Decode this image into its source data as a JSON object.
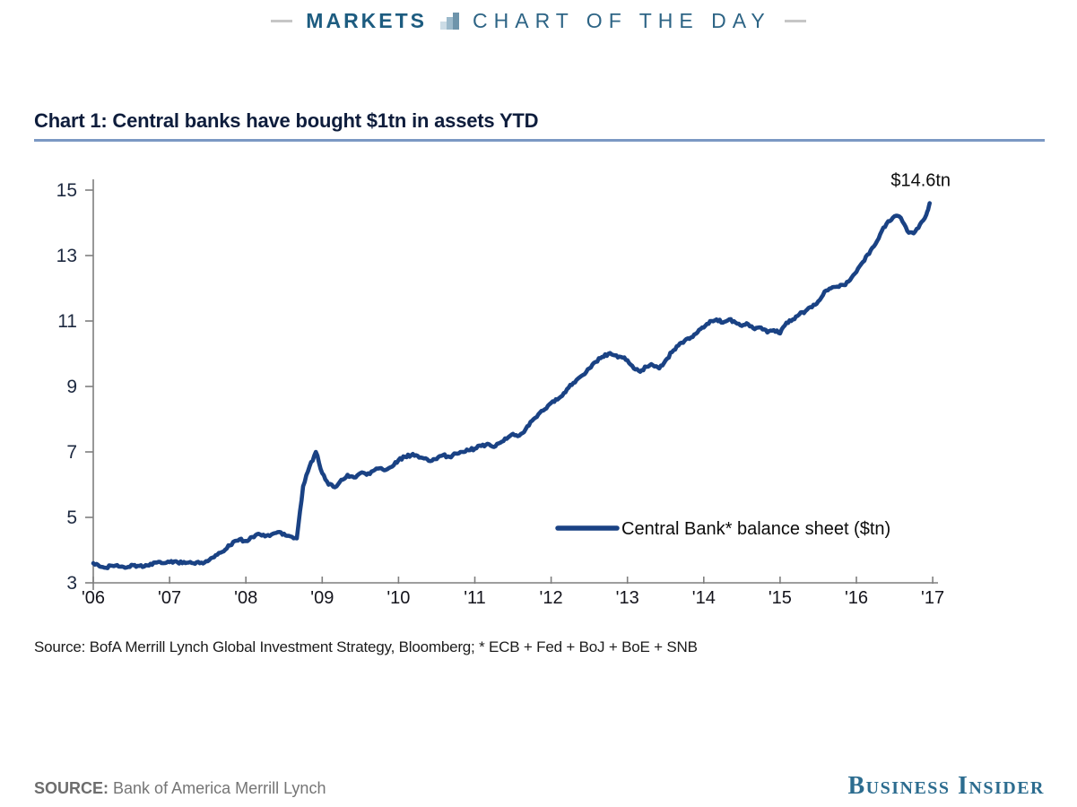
{
  "header": {
    "left_label": "MARKETS",
    "right_label": "CHART OF THE DAY",
    "icon": "bar-chart-icon",
    "text_color": "#1d5c80"
  },
  "chart": {
    "title": "Chart 1:  Central banks have bought $1tn in assets YTD",
    "source_note": "Source: BofA Merrill Lynch Global Investment Strategy, Bloomberg; * ECB + Fed + BoJ + BoE + SNB",
    "line_color": "#1a4284",
    "title_underline_color": "#7b98c3"
  },
  "chart_data": {
    "type": "line",
    "title": "Chart 1: Central banks have bought $1tn in assets YTD",
    "xlabel": "",
    "ylabel": "",
    "x_ticks": [
      "'06",
      "'07",
      "'08",
      "'09",
      "'10",
      "'11",
      "'12",
      "'13",
      "'14",
      "'15",
      "'16",
      "'17"
    ],
    "x_tick_start_year": 2006,
    "y_ticks": [
      3,
      5,
      7,
      9,
      11,
      13,
      15
    ],
    "ylim": [
      3,
      15
    ],
    "xlim": [
      2006,
      2017
    ],
    "grid": false,
    "legend_position": "inside lower right",
    "annotation": {
      "text": "$14.6tn"
    },
    "series": [
      {
        "name": "Central Bank* balance sheet ($tn)",
        "color": "#1a4284",
        "points": [
          [
            2006.0,
            3.6
          ],
          [
            2006.083,
            3.5
          ],
          [
            2006.167,
            3.46
          ],
          [
            2006.25,
            3.52
          ],
          [
            2006.333,
            3.5
          ],
          [
            2006.417,
            3.46
          ],
          [
            2006.5,
            3.55
          ],
          [
            2006.583,
            3.52
          ],
          [
            2006.667,
            3.5
          ],
          [
            2006.75,
            3.58
          ],
          [
            2006.833,
            3.62
          ],
          [
            2006.917,
            3.6
          ],
          [
            2007.0,
            3.63
          ],
          [
            2007.083,
            3.66
          ],
          [
            2007.167,
            3.6
          ],
          [
            2007.25,
            3.62
          ],
          [
            2007.333,
            3.58
          ],
          [
            2007.417,
            3.62
          ],
          [
            2007.5,
            3.66
          ],
          [
            2007.583,
            3.78
          ],
          [
            2007.667,
            3.92
          ],
          [
            2007.75,
            4.05
          ],
          [
            2007.833,
            4.25
          ],
          [
            2007.917,
            4.33
          ],
          [
            2008.0,
            4.28
          ],
          [
            2008.083,
            4.4
          ],
          [
            2008.167,
            4.5
          ],
          [
            2008.25,
            4.42
          ],
          [
            2008.333,
            4.47
          ],
          [
            2008.417,
            4.55
          ],
          [
            2008.5,
            4.5
          ],
          [
            2008.583,
            4.42
          ],
          [
            2008.667,
            4.36
          ],
          [
            2008.75,
            5.95
          ],
          [
            2008.833,
            6.55
          ],
          [
            2008.917,
            7.0
          ],
          [
            2009.0,
            6.35
          ],
          [
            2009.083,
            6.0
          ],
          [
            2009.167,
            5.92
          ],
          [
            2009.25,
            6.15
          ],
          [
            2009.333,
            6.3
          ],
          [
            2009.417,
            6.22
          ],
          [
            2009.5,
            6.35
          ],
          [
            2009.583,
            6.3
          ],
          [
            2009.667,
            6.42
          ],
          [
            2009.75,
            6.5
          ],
          [
            2009.833,
            6.45
          ],
          [
            2009.917,
            6.55
          ],
          [
            2010.0,
            6.75
          ],
          [
            2010.083,
            6.85
          ],
          [
            2010.167,
            6.9
          ],
          [
            2010.25,
            6.88
          ],
          [
            2010.333,
            6.8
          ],
          [
            2010.417,
            6.72
          ],
          [
            2010.5,
            6.78
          ],
          [
            2010.583,
            6.9
          ],
          [
            2010.667,
            6.85
          ],
          [
            2010.75,
            6.95
          ],
          [
            2010.833,
            7.0
          ],
          [
            2010.917,
            7.05
          ],
          [
            2011.0,
            7.1
          ],
          [
            2011.083,
            7.18
          ],
          [
            2011.167,
            7.25
          ],
          [
            2011.25,
            7.15
          ],
          [
            2011.333,
            7.28
          ],
          [
            2011.417,
            7.4
          ],
          [
            2011.5,
            7.55
          ],
          [
            2011.583,
            7.5
          ],
          [
            2011.667,
            7.7
          ],
          [
            2011.75,
            7.95
          ],
          [
            2011.833,
            8.15
          ],
          [
            2011.917,
            8.3
          ],
          [
            2012.0,
            8.5
          ],
          [
            2012.083,
            8.6
          ],
          [
            2012.167,
            8.8
          ],
          [
            2012.25,
            9.05
          ],
          [
            2012.333,
            9.2
          ],
          [
            2012.417,
            9.35
          ],
          [
            2012.5,
            9.55
          ],
          [
            2012.583,
            9.75
          ],
          [
            2012.667,
            9.9
          ],
          [
            2012.75,
            10.0
          ],
          [
            2012.833,
            9.95
          ],
          [
            2012.917,
            9.9
          ],
          [
            2013.0,
            9.8
          ],
          [
            2013.083,
            9.55
          ],
          [
            2013.167,
            9.45
          ],
          [
            2013.25,
            9.6
          ],
          [
            2013.333,
            9.65
          ],
          [
            2013.417,
            9.55
          ],
          [
            2013.5,
            9.8
          ],
          [
            2013.583,
            10.05
          ],
          [
            2013.667,
            10.25
          ],
          [
            2013.75,
            10.4
          ],
          [
            2013.833,
            10.5
          ],
          [
            2013.917,
            10.65
          ],
          [
            2014.0,
            10.8
          ],
          [
            2014.083,
            11.0
          ],
          [
            2014.167,
            11.05
          ],
          [
            2014.25,
            10.95
          ],
          [
            2014.333,
            11.05
          ],
          [
            2014.417,
            10.95
          ],
          [
            2014.5,
            10.85
          ],
          [
            2014.583,
            10.9
          ],
          [
            2014.667,
            10.75
          ],
          [
            2014.75,
            10.8
          ],
          [
            2014.833,
            10.65
          ],
          [
            2014.917,
            10.72
          ],
          [
            2015.0,
            10.62
          ],
          [
            2015.083,
            10.95
          ],
          [
            2015.167,
            11.05
          ],
          [
            2015.25,
            11.2
          ],
          [
            2015.333,
            11.3
          ],
          [
            2015.417,
            11.42
          ],
          [
            2015.5,
            11.6
          ],
          [
            2015.583,
            11.9
          ],
          [
            2015.667,
            12.0
          ],
          [
            2015.75,
            12.05
          ],
          [
            2015.833,
            12.1
          ],
          [
            2015.917,
            12.25
          ],
          [
            2016.0,
            12.5
          ],
          [
            2016.083,
            12.8
          ],
          [
            2016.167,
            13.05
          ],
          [
            2016.25,
            13.35
          ],
          [
            2016.333,
            13.75
          ],
          [
            2016.417,
            14.05
          ],
          [
            2016.5,
            14.2
          ],
          [
            2016.583,
            14.15
          ],
          [
            2016.667,
            13.75
          ],
          [
            2016.75,
            13.68
          ],
          [
            2016.833,
            13.95
          ],
          [
            2016.917,
            14.25
          ],
          [
            2016.96,
            14.6
          ]
        ]
      }
    ]
  },
  "footer": {
    "source_label": "SOURCE:",
    "source_value": "Bank of America Merrill Lynch",
    "brand": "Business Insider",
    "brand_color": "#2c6c8f"
  }
}
